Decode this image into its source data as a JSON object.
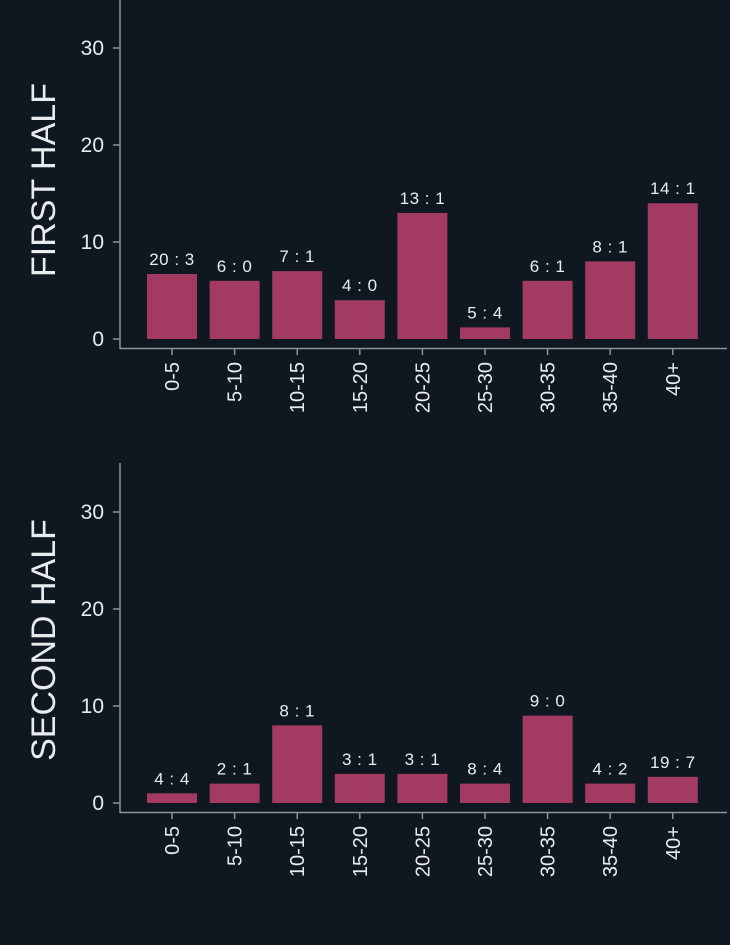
{
  "colors": {
    "background": "#0f1820",
    "bar": "#a33a62",
    "text": "#e9ecef",
    "axis": "#8a939b"
  },
  "chart_data": [
    {
      "type": "bar",
      "title": "",
      "ylabel": "FIRST HALF",
      "xlabel": "",
      "ylim": [
        0,
        35
      ],
      "yticks": [
        "0",
        "10",
        "20",
        "30"
      ],
      "categories": [
        "0-5",
        "5-10",
        "10-15",
        "15-20",
        "20-25",
        "25-30",
        "30-35",
        "35-40",
        "40+"
      ],
      "values": [
        6.7,
        6,
        7,
        4,
        13,
        1.2,
        6,
        8,
        14
      ],
      "labels": [
        "20 : 3",
        "6 : 0",
        "7 : 1",
        "4 : 0",
        "13 : 1",
        "5 : 4",
        "6 : 1",
        "8 : 1",
        "14 : 1"
      ]
    },
    {
      "type": "bar",
      "title": "",
      "ylabel": "SECOND HALF",
      "xlabel": "",
      "ylim": [
        0,
        35
      ],
      "yticks": [
        "0",
        "10",
        "20",
        "30"
      ],
      "categories": [
        "0-5",
        "5-10",
        "10-15",
        "15-20",
        "20-25",
        "25-30",
        "30-35",
        "35-40",
        "40+"
      ],
      "values": [
        1,
        2,
        8,
        3,
        3,
        2,
        9,
        2,
        2.7
      ],
      "labels": [
        "4 : 4",
        "2 : 1",
        "8 : 1",
        "3 : 1",
        "3 : 1",
        "8 : 4",
        "9 : 0",
        "4 : 2",
        "19 : 7"
      ]
    }
  ]
}
